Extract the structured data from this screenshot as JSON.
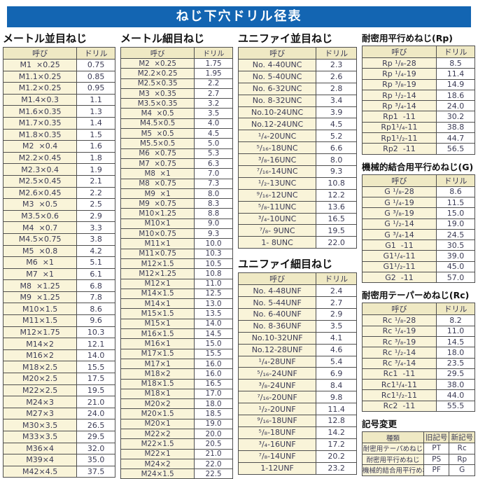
{
  "title": "ねじ下穴ドリル径表",
  "labels": {
    "name": "呼び",
    "drill": "ドリル"
  },
  "metric_coarse": {
    "title": "メートル並目ねじ",
    "rows": [
      [
        "M1  ×0.25",
        "0.75"
      ],
      [
        "M1.1×0.25",
        "0.85"
      ],
      [
        "M1.2×0.25",
        "0.95"
      ],
      [
        "M1.4×0.3",
        "1.1"
      ],
      [
        "M1.6×0.35",
        "1.3"
      ],
      [
        "M1.7×0.35",
        "1.4"
      ],
      [
        "M1.8×0.35",
        "1.5"
      ],
      [
        "M2  ×0.4",
        "1.6"
      ],
      [
        "M2.2×0.45",
        "1.8"
      ],
      [
        "M2.3×0.4",
        "1.9"
      ],
      [
        "M2.5×0.45",
        "2.1"
      ],
      [
        "M2.6×0.45",
        "2.2"
      ],
      [
        "M3  ×0.5",
        "2.5"
      ],
      [
        "M3.5×0.6",
        "2.9"
      ],
      [
        "M4  ×0.7",
        "3.3"
      ],
      [
        "M4.5×0.75",
        "3.8"
      ],
      [
        "M5  ×0.8",
        "4.2"
      ],
      [
        "M6  ×1",
        "5.1"
      ],
      [
        "M7  ×1",
        "6.1"
      ],
      [
        "M8  ×1.25",
        "6.8"
      ],
      [
        "M9  ×1.25",
        "7.8"
      ],
      [
        "M10×1.5",
        "8.6"
      ],
      [
        "M11×1.5",
        "9.6"
      ],
      [
        "M12×1.75",
        "10.3"
      ],
      [
        "M14×2",
        "12.1"
      ],
      [
        "M16×2",
        "14.0"
      ],
      [
        "M18×2.5",
        "15.5"
      ],
      [
        "M20×2.5",
        "17.5"
      ],
      [
        "M22×2.5",
        "19.5"
      ],
      [
        "M24×3",
        "21.0"
      ],
      [
        "M27×3",
        "24.0"
      ],
      [
        "M30×3.5",
        "26.5"
      ],
      [
        "M33×3.5",
        "29.5"
      ],
      [
        "M36×4",
        "32.0"
      ],
      [
        "M39×4",
        "35.0"
      ],
      [
        "M42×4.5",
        "37.5"
      ]
    ]
  },
  "metric_fine": {
    "title": "メートル細目ねじ",
    "rows": [
      [
        "M2  ×0.25",
        "1.75"
      ],
      [
        "M2.2×0.25",
        "1.95"
      ],
      [
        "M2.5×0.35",
        "2.2"
      ],
      [
        "M3  ×0.35",
        "2.7"
      ],
      [
        "M3.5×0.35",
        "3.2"
      ],
      [
        "M4  ×0.5",
        "3.5"
      ],
      [
        "M4.5×0.5",
        "4.0"
      ],
      [
        "M5  ×0.5",
        "4.5"
      ],
      [
        "M5.5×0.5",
        "5.0"
      ],
      [
        "M6  ×0.75",
        "5.3"
      ],
      [
        "M7  ×0.75",
        "6.3"
      ],
      [
        "M8  ×1",
        "7.0"
      ],
      [
        "M8  ×0.75",
        "7.3"
      ],
      [
        "M9  ×1",
        "8.0"
      ],
      [
        "M9  ×0.75",
        "8.3"
      ],
      [
        "M10×1.25",
        "8.8"
      ],
      [
        "M10×1",
        "9.0"
      ],
      [
        "M10×0.75",
        "9.3"
      ],
      [
        "M11×1",
        "10.0"
      ],
      [
        "M11×0.75",
        "10.3"
      ],
      [
        "M12×1.5",
        "10.5"
      ],
      [
        "M12×1.25",
        "10.8"
      ],
      [
        "M12×1",
        "11.0"
      ],
      [
        "M14×1.5",
        "12.5"
      ],
      [
        "M14×1",
        "13.0"
      ],
      [
        "M15×1.5",
        "13.5"
      ],
      [
        "M15×1",
        "14.0"
      ],
      [
        "M16×1.5",
        "14.5"
      ],
      [
        "M16×1",
        "15.0"
      ],
      [
        "M17×1.5",
        "15.5"
      ],
      [
        "M17×1",
        "16.0"
      ],
      [
        "M18×2",
        "16.0"
      ],
      [
        "M18×1.5",
        "16.5"
      ],
      [
        "M18×1",
        "17.0"
      ],
      [
        "M20×2",
        "18.0"
      ],
      [
        "M20×1.5",
        "18.5"
      ],
      [
        "M20×1",
        "19.0"
      ],
      [
        "M22×2",
        "20.0"
      ],
      [
        "M22×1.5",
        "20.5"
      ],
      [
        "M22×1",
        "21.0"
      ],
      [
        "M24×2",
        "22.0"
      ],
      [
        "M24×1.5",
        "22.5"
      ]
    ]
  },
  "unified_coarse": {
    "title": "ユニファイ並目ねじ",
    "rows": [
      [
        "No. 4-40UNC",
        "2.3"
      ],
      [
        "No. 5-40UNC",
        "2.6"
      ],
      [
        "No. 6-32UNC",
        "2.8"
      ],
      [
        "No. 8-32UNC",
        "3.4"
      ],
      [
        "No.10-24UNC",
        "3.9"
      ],
      [
        "No.12-24UNC",
        "4.5"
      ],
      [
        "¹/₄-20UNC",
        "5.2"
      ],
      [
        "⁵/₁₆-18UNC",
        "6.6"
      ],
      [
        "³/₈-16UNC",
        "8.0"
      ],
      [
        "⁷/₁₆-14UNC",
        "9.3"
      ],
      [
        "¹/₂-13UNC",
        "10.8"
      ],
      [
        "⁹/₁₆-12UNC",
        "12.2"
      ],
      [
        "⁵/₈-11UNC",
        "13.6"
      ],
      [
        "³/₄-10UNC",
        "16.5"
      ],
      [
        "⁷/₈- 9UNC",
        "19.5"
      ],
      [
        "1- 8UNC",
        "22.0"
      ]
    ]
  },
  "unified_fine": {
    "title": "ユニファイ細目ねじ",
    "rows": [
      [
        "No. 4-48UNF",
        "2.4"
      ],
      [
        "No. 5-44UNF",
        "2.7"
      ],
      [
        "No. 6-40UNF",
        "2.9"
      ],
      [
        "No. 8-36UNF",
        "3.5"
      ],
      [
        "No.10-32UNF",
        "4.1"
      ],
      [
        "No.12-28UNF",
        "4.6"
      ],
      [
        "¹/₄-28UNF",
        "5.4"
      ],
      [
        "⁵/₁₆-24UNF",
        "6.9"
      ],
      [
        "³/₈-24UNF",
        "8.4"
      ],
      [
        "⁷/₁₆-20UNF",
        "9.8"
      ],
      [
        "¹/₂-20UNF",
        "11.4"
      ],
      [
        "⁹/₁₆-18UNF",
        "12.8"
      ],
      [
        "⁵/₈-18UNF",
        "14.2"
      ],
      [
        "³/₄-16UNF",
        "17.2"
      ],
      [
        "⁷/₈-14UNF",
        "20.2"
      ],
      [
        "1-12UNF",
        "23.2"
      ]
    ]
  },
  "rp": {
    "title": "耐密用平行めねじ(Rp)",
    "rows": [
      [
        "Rp ¹/₈-28",
        "8.5"
      ],
      [
        "Rp ¹/₄-19",
        "11.4"
      ],
      [
        "Rp ³/₈-19",
        "14.9"
      ],
      [
        "Rp ¹/₂-14",
        "18.6"
      ],
      [
        "Rp ³/₄-14",
        "24.0"
      ],
      [
        "Rp1  -11",
        "30.2"
      ],
      [
        "Rp1¹/₄-11",
        "38.8"
      ],
      [
        "Rp1¹/₂-11",
        "44.7"
      ],
      [
        "Rp2  -11",
        "56.5"
      ]
    ]
  },
  "g": {
    "title": "機械的結合用平行めねじ(G)",
    "rows": [
      [
        "G ¹/₈-28",
        "8.6"
      ],
      [
        "G ¹/₄-19",
        "11.5"
      ],
      [
        "G ³/₈-19",
        "15.0"
      ],
      [
        "G ¹/₂-14",
        "19.0"
      ],
      [
        "G ³/₄-14",
        "24.5"
      ],
      [
        "G1  -11",
        "30.5"
      ],
      [
        "G1¹/₄-11",
        "39.0"
      ],
      [
        "G1¹/₂-11",
        "45.0"
      ],
      [
        "G2  -11",
        "57.0"
      ]
    ]
  },
  "rc": {
    "title": "耐密用テーパーめねじ(Rc)",
    "rows": [
      [
        "Rc ¹/₈-28",
        "8.2"
      ],
      [
        "Rc ¹/₄-19",
        "11.0"
      ],
      [
        "Rc ³/₈-19",
        "14.5"
      ],
      [
        "Rc ¹/₂-14",
        "18.0"
      ],
      [
        "Rc ³/₄-14",
        "23.5"
      ],
      [
        "Rc1  -11",
        "29.5"
      ],
      [
        "Rc1¹/₄-11",
        "38.0"
      ],
      [
        "Rc1¹/₂-11",
        "44.0"
      ],
      [
        "Rc2  -11",
        "55.5"
      ]
    ]
  },
  "symbols": {
    "title": "記号変更",
    "headers": [
      "種類",
      "旧記号",
      "新記号"
    ],
    "rows": [
      [
        "耐密用テーパめねじ",
        "PT",
        "Rc"
      ],
      [
        "耐密用平行めねじ",
        "PS",
        "Rp"
      ],
      [
        "機械的結合用平行めねじ",
        "PF",
        "G"
      ]
    ]
  }
}
